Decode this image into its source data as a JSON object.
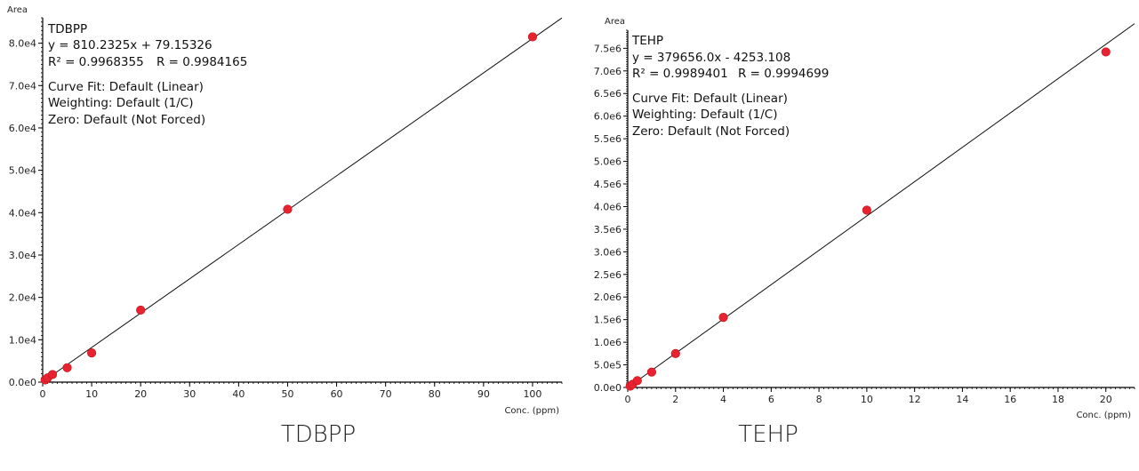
{
  "chart_data": [
    {
      "type": "scatter",
      "title": "TDBPP",
      "caption": "TDBPP",
      "equation": "y = 810.2325x + 79.15326",
      "r2_text": "R² = 0.9968355",
      "r_text": "R = 0.9984165",
      "curve_fit": "Curve Fit: Default (Linear)",
      "weighting": "Weighting: Default (1/C)",
      "zero": "Zero: Default (Not Forced)",
      "xlabel": "Conc. (ppm)",
      "ylabel": "Area",
      "xlim": [
        0,
        106
      ],
      "ylim": [
        0,
        86000
      ],
      "xticks": [
        0,
        10,
        20,
        30,
        40,
        50,
        60,
        70,
        80,
        90,
        100
      ],
      "xtick_labels": [
        "0",
        "10",
        "20",
        "30",
        "40",
        "50",
        "60",
        "70",
        "80",
        "90",
        "100"
      ],
      "yticks": [
        0,
        10000,
        20000,
        30000,
        40000,
        50000,
        60000,
        70000,
        80000
      ],
      "ytick_labels": [
        "0.0e0",
        "1.0e4",
        "2.0e4",
        "3.0e4",
        "4.0e4",
        "5.0e4",
        "6.0e4",
        "7.0e4",
        "8.0e4"
      ],
      "fit": {
        "slope": 810.2325,
        "intercept": 79.15326
      },
      "points": [
        {
          "x": 0.5,
          "y": 520
        },
        {
          "x": 1,
          "y": 1000
        },
        {
          "x": 2,
          "y": 1800
        },
        {
          "x": 5,
          "y": 3400
        },
        {
          "x": 10,
          "y": 6900
        },
        {
          "x": 20,
          "y": 17000
        },
        {
          "x": 50,
          "y": 40800
        },
        {
          "x": 100,
          "y": 81500
        }
      ],
      "colors": {
        "point": "#e8222e",
        "line": "#111111"
      }
    },
    {
      "type": "scatter",
      "title": "TEHP",
      "caption": "TEHP",
      "equation": "y = 379656.0x - 4253.108",
      "r2_text": "R² = 0.9989401",
      "r_text": "R = 0.9994699",
      "curve_fit": "Curve Fit: Default (Linear)",
      "weighting": "Weighting: Default (1/C)",
      "zero": "Zero: Default (Not Forced)",
      "xlabel": "Conc. (ppm)",
      "ylabel": "Area",
      "xlim": [
        0,
        21.2
      ],
      "ylim": [
        0,
        7900000
      ],
      "xticks": [
        0,
        2,
        4,
        6,
        8,
        10,
        12,
        14,
        16,
        18,
        20
      ],
      "xtick_labels": [
        "0",
        "2",
        "4",
        "6",
        "8",
        "10",
        "12",
        "14",
        "16",
        "18",
        "20"
      ],
      "yticks": [
        0,
        500000,
        1000000,
        1500000,
        2000000,
        2500000,
        3000000,
        3500000,
        4000000,
        4500000,
        5000000,
        5500000,
        6000000,
        6500000,
        7000000,
        7500000
      ],
      "ytick_labels": [
        "0.0e0",
        "5.0e5",
        "1.0e6",
        "1.5e6",
        "2.0e6",
        "2.5e6",
        "3.0e6",
        "3.5e6",
        "4.0e6",
        "4.5e6",
        "5.0e6",
        "5.5e6",
        "6.0e6",
        "6.5e6",
        "7.0e6",
        "7.5e6"
      ],
      "fit": {
        "slope": 379656.0,
        "intercept": -4253.108
      },
      "points": [
        {
          "x": 0.1,
          "y": 30000
        },
        {
          "x": 0.2,
          "y": 70000
        },
        {
          "x": 0.4,
          "y": 150000
        },
        {
          "x": 1,
          "y": 340000
        },
        {
          "x": 2,
          "y": 750000
        },
        {
          "x": 4,
          "y": 1550000
        },
        {
          "x": 10,
          "y": 3920000
        },
        {
          "x": 20,
          "y": 7420000
        }
      ],
      "colors": {
        "point": "#e8222e",
        "line": "#111111"
      }
    }
  ]
}
